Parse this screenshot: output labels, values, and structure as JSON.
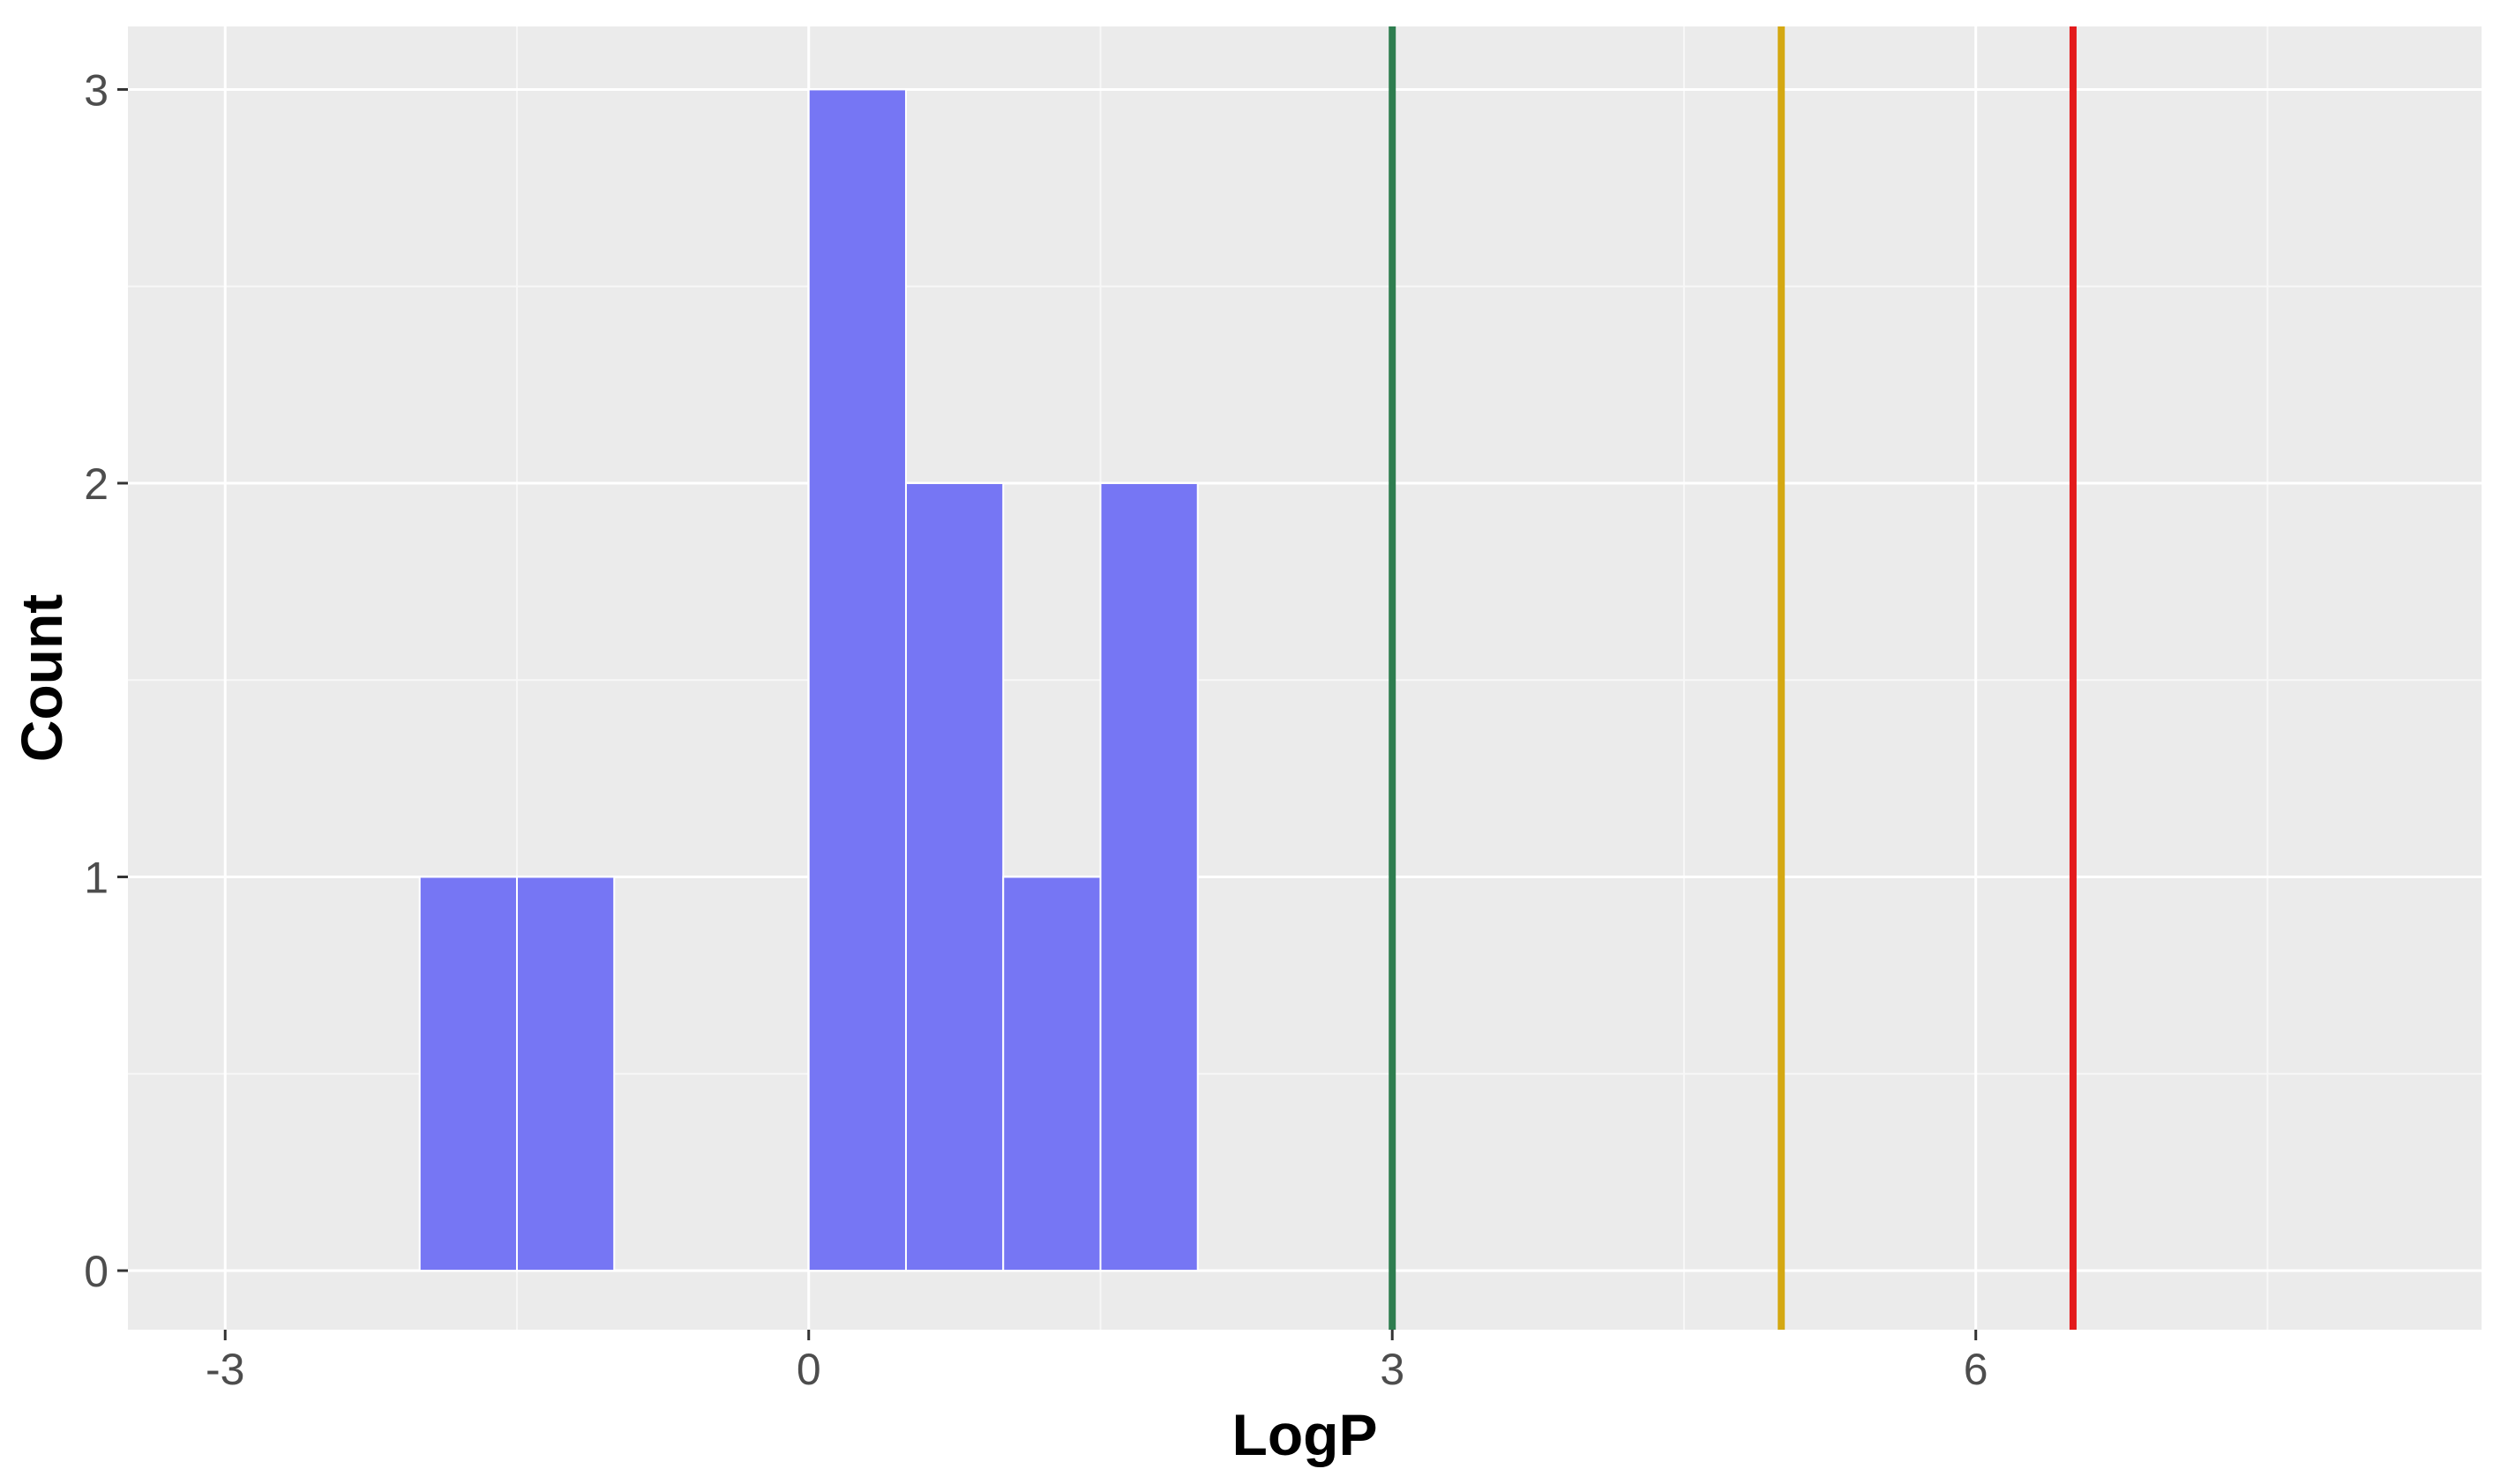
{
  "chart_data": {
    "type": "bar",
    "subtype": "histogram",
    "title": "",
    "xlabel": "LogP",
    "ylabel": "Count",
    "xlim": [
      -3.5,
      8.6
    ],
    "ylim": [
      -0.15,
      3.16
    ],
    "x_ticks": [
      -3,
      0,
      3,
      6
    ],
    "x_tick_labels": [
      "-3",
      "0",
      "3",
      "6"
    ],
    "x_minor_ticks": [
      -1.5,
      1.5,
      4.5,
      7.5
    ],
    "y_ticks": [
      0,
      1,
      2,
      3
    ],
    "y_tick_labels": [
      "0",
      "1",
      "2",
      "3"
    ],
    "y_minor_ticks": [
      0.5,
      1.5,
      2.5
    ],
    "bin_width": 0.5,
    "bins": [
      {
        "x0": -2.0,
        "x1": -1.5,
        "count": 1
      },
      {
        "x0": -1.5,
        "x1": -1.0,
        "count": 1
      },
      {
        "x0": 0.0,
        "x1": 0.5,
        "count": 3
      },
      {
        "x0": 0.5,
        "x1": 1.0,
        "count": 2
      },
      {
        "x0": 1.0,
        "x1": 1.5,
        "count": 1
      },
      {
        "x0": 1.5,
        "x1": 2.0,
        "count": 2
      }
    ],
    "reference_lines": [
      {
        "x": 3,
        "color": "#2e7d4f"
      },
      {
        "x": 5,
        "color": "#d4a812"
      },
      {
        "x": 6.5,
        "color": "#e31a1c"
      }
    ],
    "grid": true,
    "legend": "none",
    "colors": {
      "bar_fill": "#7676f4",
      "bar_outline": "#ffffff",
      "panel_background": "#ebebeb",
      "grid_major": "#ffffff",
      "grid_minor": "#f7f7f7",
      "tick_mark": "#333333"
    }
  }
}
